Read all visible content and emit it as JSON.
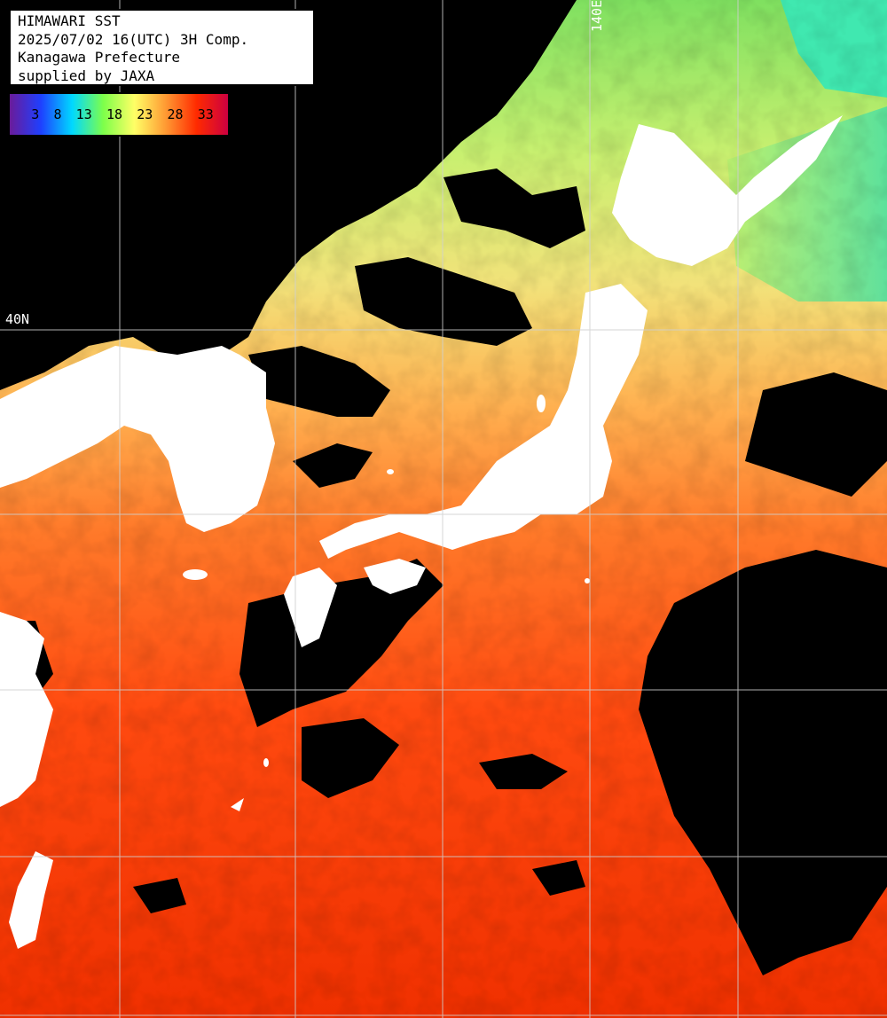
{
  "header": {
    "lines": [
      "HIMAWARI SST",
      "2025/07/02 16(UTC) 3H Comp.",
      "Kanagawa Prefecture",
      "supplied by JAXA"
    ]
  },
  "legend": {
    "ticks": [
      "3",
      "8",
      "13",
      "18",
      "23",
      "28",
      "33"
    ],
    "colors": [
      "#6a1b9a",
      "#1e40ff",
      "#00d8ff",
      "#7dff4a",
      "#ffff66",
      "#ff9a33",
      "#ff2a00",
      "#cc0040"
    ]
  },
  "grid": {
    "lat_label": "40N",
    "lon_label": "140E"
  },
  "palette": {
    "cloud": "#000000",
    "land": "#ffffff",
    "gridline": "#d0d0d0"
  }
}
